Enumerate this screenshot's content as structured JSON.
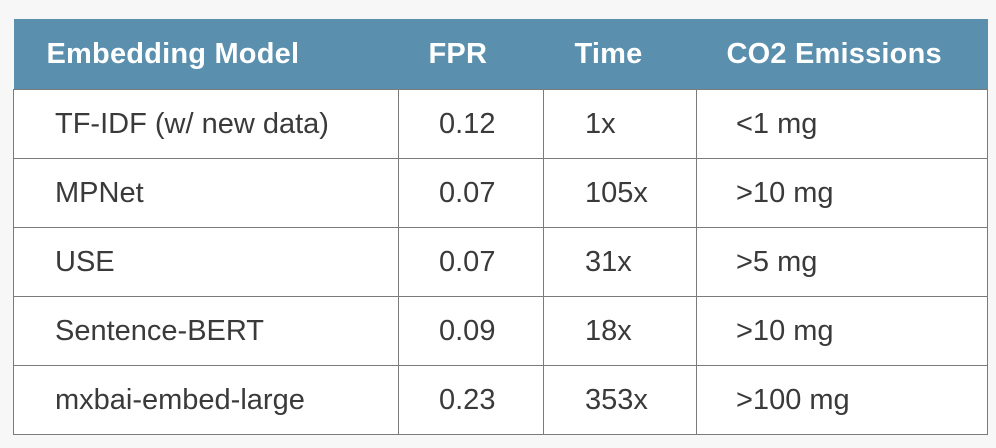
{
  "table": {
    "headers": [
      "Embedding Model",
      "FPR",
      "Time",
      "CO2 Emissions"
    ],
    "rows": [
      {
        "model": "TF-IDF (w/ new data)",
        "fpr": "0.12",
        "time": "1x",
        "co2": "<1 mg"
      },
      {
        "model": "MPNet",
        "fpr": "0.07",
        "time": "105x",
        "co2": ">10 mg"
      },
      {
        "model": "USE",
        "fpr": "0.07",
        "time": "31x",
        "co2": ">5 mg"
      },
      {
        "model": "Sentence-BERT",
        "fpr": "0.09",
        "time": "18x",
        "co2": ">10 mg"
      },
      {
        "model": "mxbai-embed-large",
        "fpr": "0.23",
        "time": "353x",
        "co2": ">100 mg"
      }
    ]
  },
  "colors": {
    "header_background": "#5a8fae",
    "header_text": "#ffffff",
    "cell_text": "#3a3a3a",
    "border": "#7b7b7b",
    "page_background": "#f7f7f7"
  }
}
